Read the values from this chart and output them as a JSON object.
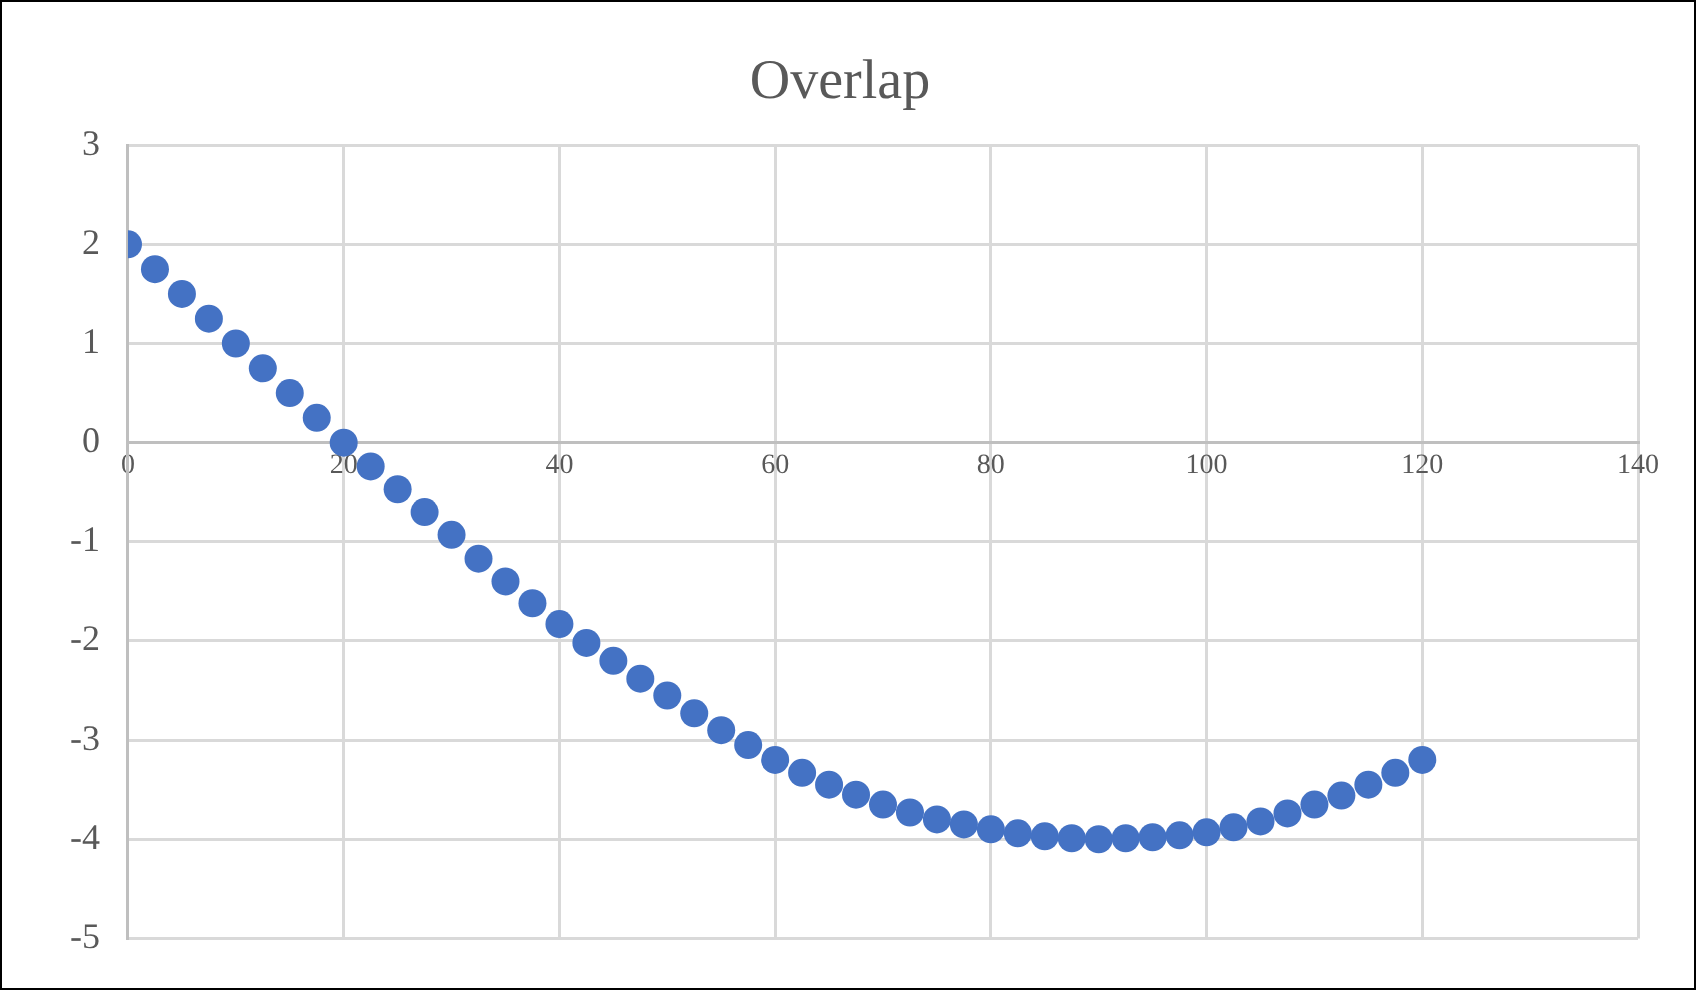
{
  "chart_data": {
    "type": "scatter",
    "title": "Overlap",
    "x": [
      0,
      2.5,
      5,
      7.5,
      10,
      12.5,
      15,
      17.5,
      20,
      22.5,
      25,
      27.5,
      30,
      32.5,
      35,
      37.5,
      40,
      42.5,
      45,
      47.5,
      50,
      52.5,
      55,
      57.5,
      60,
      62.5,
      65,
      67.5,
      70,
      72.5,
      75,
      77.5,
      80,
      82.5,
      85,
      87.5,
      90,
      92.5,
      95,
      97.5,
      100,
      102.5,
      105,
      107.5,
      110,
      112.5,
      115,
      117.5,
      120
    ],
    "series": [
      {
        "color": "#4472c4",
        "values": [
          2.0,
          1.75,
          1.5,
          1.25,
          1.0,
          0.75,
          0.5,
          0.25,
          0.0,
          -0.24,
          -0.47,
          -0.7,
          -0.93,
          -1.17,
          -1.4,
          -1.62,
          -1.83,
          -2.02,
          -2.2,
          -2.38,
          -2.55,
          -2.73,
          -2.9,
          -3.05,
          -3.2,
          -3.33,
          -3.45,
          -3.55,
          -3.65,
          -3.73,
          -3.8,
          -3.85,
          -3.9,
          -3.94,
          -3.97,
          -3.99,
          -4.0,
          -3.99,
          -3.98,
          -3.96,
          -3.93,
          -3.88,
          -3.82,
          -3.74,
          -3.65,
          -3.56,
          -3.45,
          -3.33,
          -3.2
        ]
      }
    ],
    "xlim": [
      0,
      140
    ],
    "xticks": [
      0,
      20,
      40,
      60,
      80,
      100,
      120,
      140
    ],
    "ylim": [
      -5,
      3
    ],
    "yticks": [
      -5,
      -4,
      -3,
      -2,
      -1,
      0,
      1,
      2,
      3
    ],
    "grid": true,
    "legend": false,
    "marker": "circle"
  }
}
